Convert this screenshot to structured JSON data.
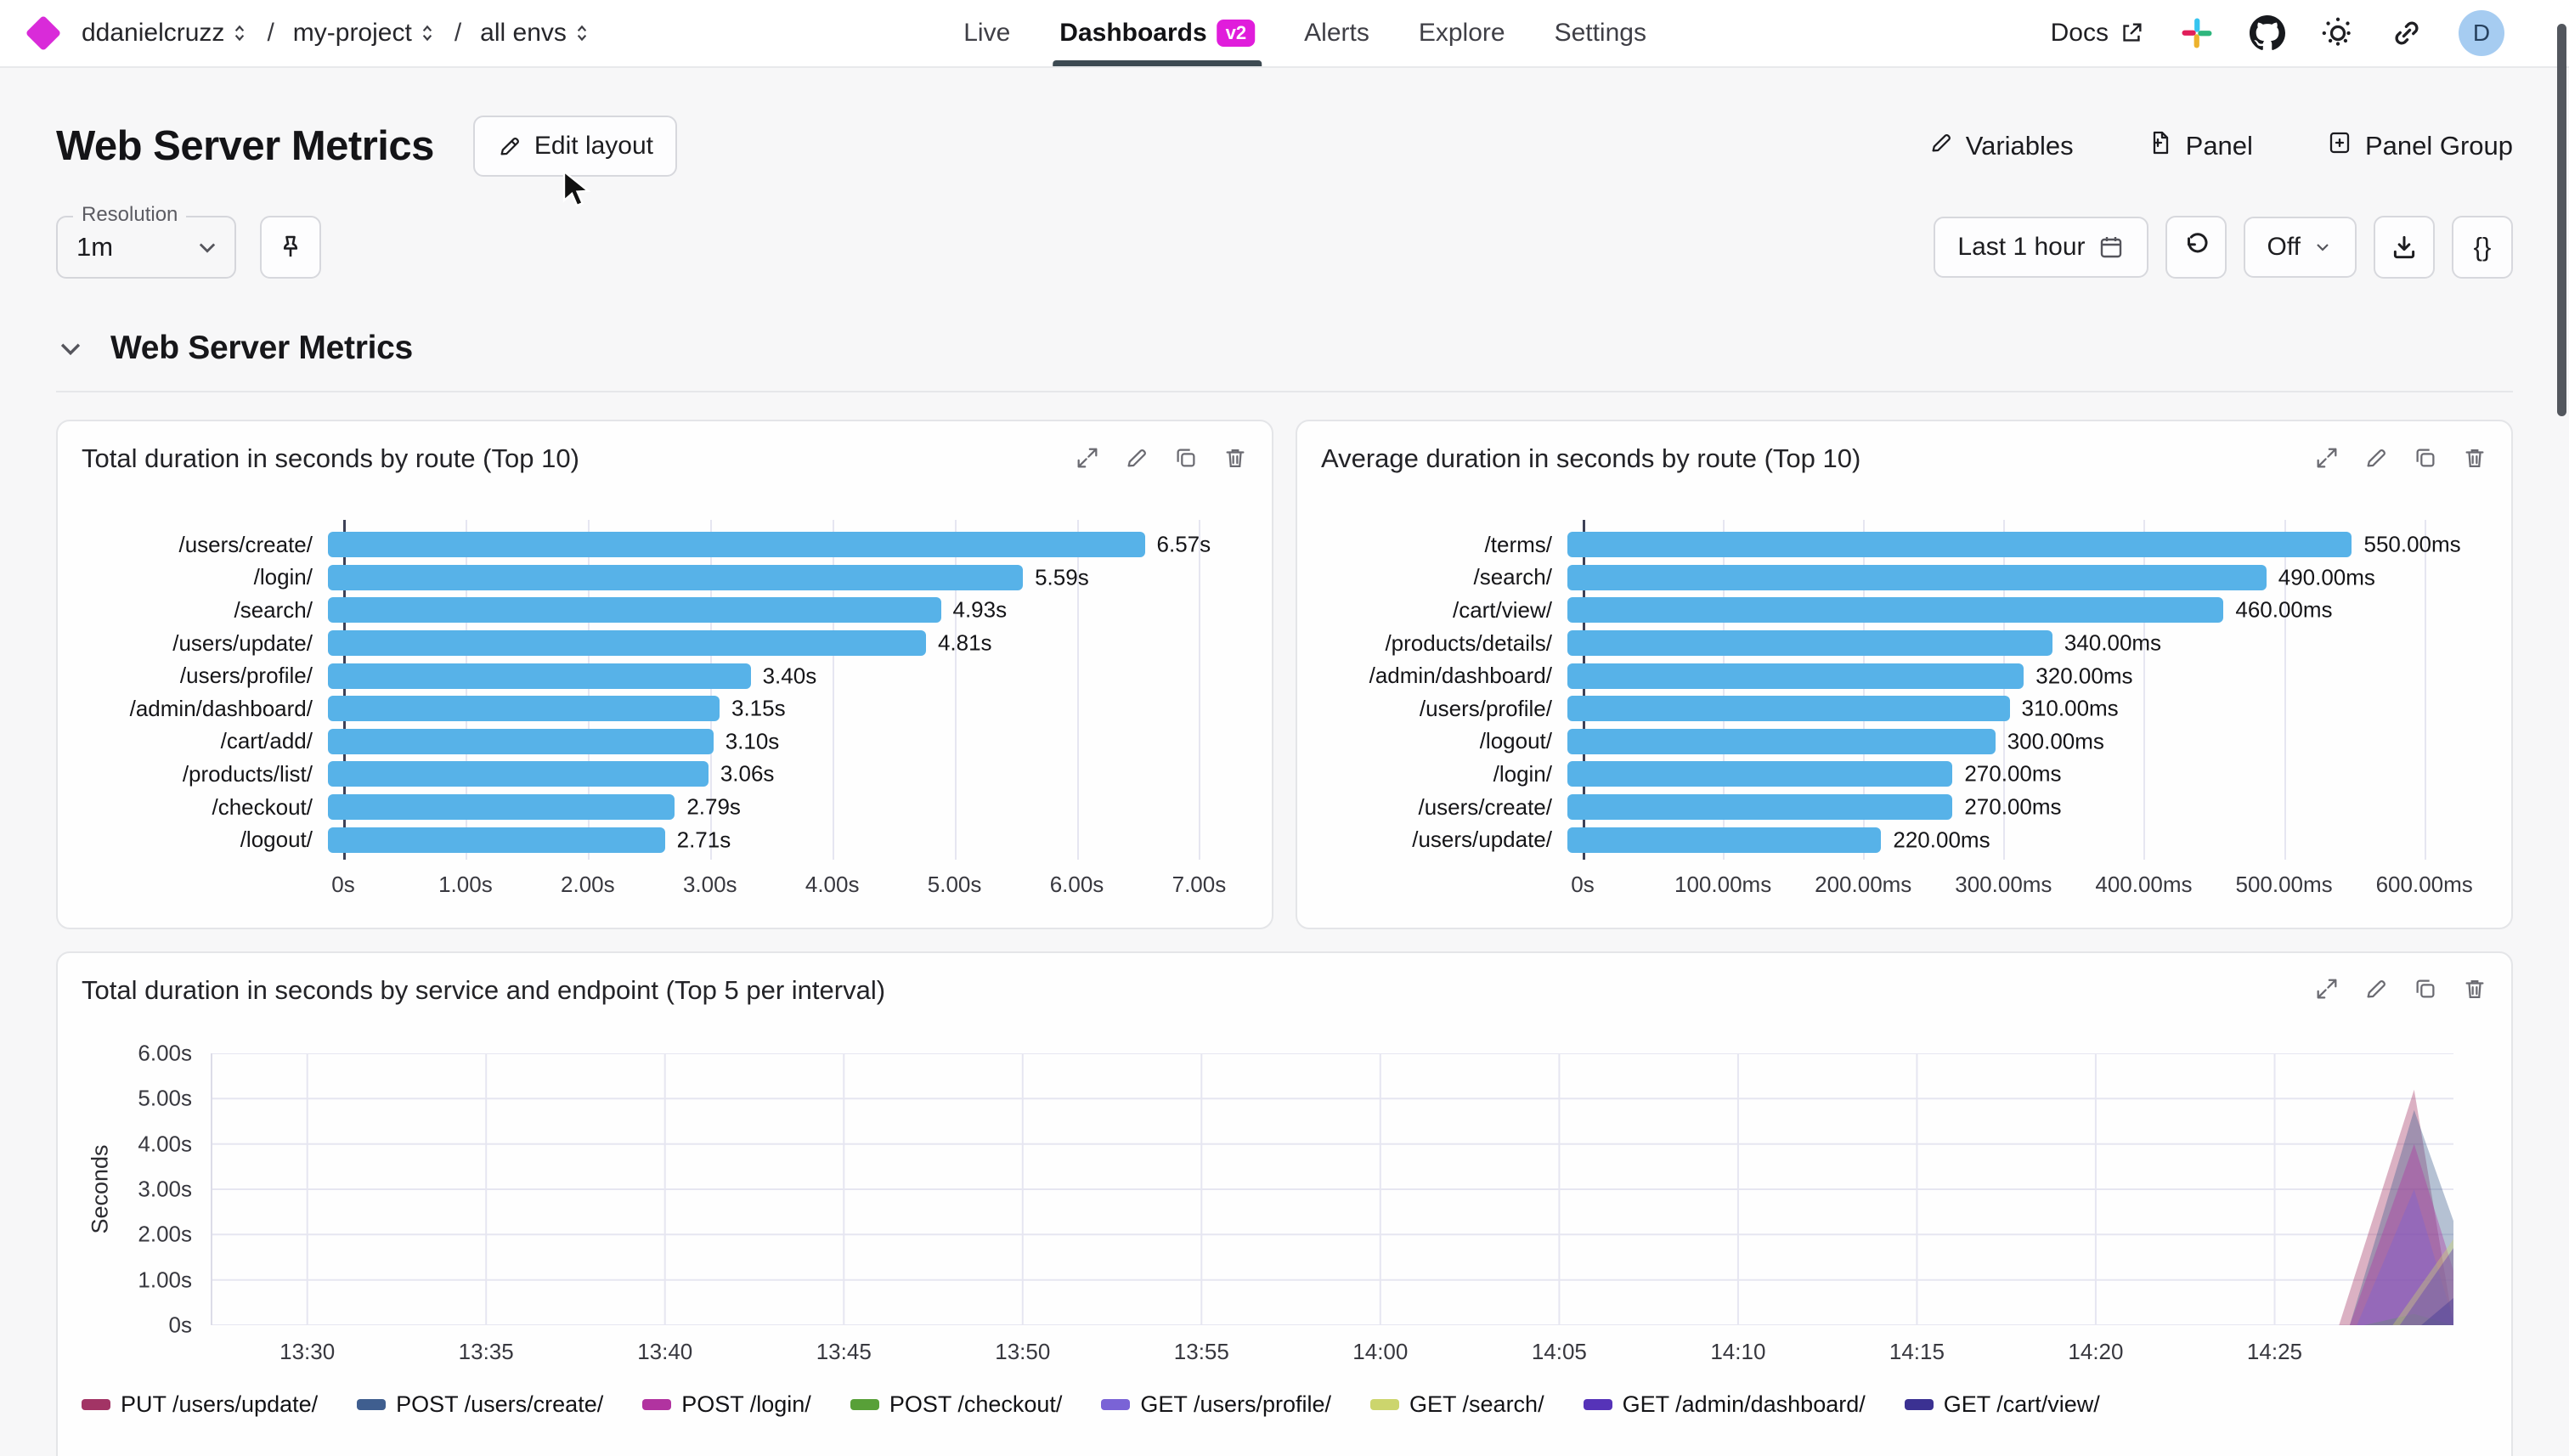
{
  "topbar": {
    "breadcrumb": {
      "separator": "/",
      "items": [
        "ddanielcruzz",
        "my-project",
        "all envs"
      ]
    },
    "tabs": [
      {
        "label": "Live",
        "active": false
      },
      {
        "label": "Dashboards",
        "active": true,
        "badge": "v2"
      },
      {
        "label": "Alerts",
        "active": false
      },
      {
        "label": "Explore",
        "active": false
      },
      {
        "label": "Settings",
        "active": false
      }
    ],
    "docs_label": "Docs",
    "avatar_initial": "D"
  },
  "header": {
    "title": "Web Server Metrics",
    "edit_layout_label": "Edit layout",
    "actions": [
      {
        "label": "Variables",
        "icon": "pencil-icon"
      },
      {
        "label": "Panel",
        "icon": "add-panel-icon"
      },
      {
        "label": "Panel Group",
        "icon": "add-panel-group-icon"
      }
    ]
  },
  "controls": {
    "resolution_label": "Resolution",
    "resolution_value": "1m",
    "time_range_label": "Last 1 hour",
    "refresh_value": "Off",
    "braces_label": "{}"
  },
  "section": {
    "title": "Web Server Metrics"
  },
  "panel_action_icons": [
    "expand-icon",
    "edit-icon",
    "duplicate-icon",
    "delete-icon"
  ],
  "chart_data": [
    {
      "type": "bar",
      "orientation": "horizontal",
      "title": "Total duration in seconds by route (Top 10)",
      "categories": [
        "/users/create/",
        "/login/",
        "/search/",
        "/users/update/",
        "/users/profile/",
        "/admin/dashboard/",
        "/cart/add/",
        "/products/list/",
        "/checkout/",
        "/logout/"
      ],
      "values": [
        6.57,
        5.59,
        4.93,
        4.81,
        3.4,
        3.15,
        3.1,
        3.06,
        2.79,
        2.71
      ],
      "value_labels": [
        "6.57s",
        "5.59s",
        "4.93s",
        "4.81s",
        "3.40s",
        "3.15s",
        "3.10s",
        "3.06s",
        "2.79s",
        "2.71s"
      ],
      "xticks": [
        {
          "v": 0,
          "label": "0s"
        },
        {
          "v": 1,
          "label": "1.00s"
        },
        {
          "v": 2,
          "label": "2.00s"
        },
        {
          "v": 3,
          "label": "3.00s"
        },
        {
          "v": 4,
          "label": "4.00s"
        },
        {
          "v": 5,
          "label": "5.00s"
        },
        {
          "v": 6,
          "label": "6.00s"
        },
        {
          "v": 7,
          "label": "7.00s"
        }
      ],
      "xmax": 7.4,
      "bar_color": "#57b2e8"
    },
    {
      "type": "bar",
      "orientation": "horizontal",
      "title": "Average duration in seconds by route (Top 10)",
      "categories": [
        "/terms/",
        "/search/",
        "/cart/view/",
        "/products/details/",
        "/admin/dashboard/",
        "/users/profile/",
        "/logout/",
        "/login/",
        "/users/create/",
        "/users/update/"
      ],
      "values": [
        550,
        490,
        460,
        340,
        320,
        310,
        300,
        270,
        270,
        220
      ],
      "value_labels": [
        "550.00ms",
        "490.00ms",
        "460.00ms",
        "340.00ms",
        "320.00ms",
        "310.00ms",
        "300.00ms",
        "270.00ms",
        "270.00ms",
        "220.00ms"
      ],
      "xticks": [
        {
          "v": 0,
          "label": "0s"
        },
        {
          "v": 100,
          "label": "100.00ms"
        },
        {
          "v": 200,
          "label": "200.00ms"
        },
        {
          "v": 300,
          "label": "300.00ms"
        },
        {
          "v": 400,
          "label": "400.00ms"
        },
        {
          "v": 500,
          "label": "500.00ms"
        },
        {
          "v": 600,
          "label": "600.00ms"
        }
      ],
      "xmax": 645,
      "bar_color": "#57b2e8"
    },
    {
      "type": "area",
      "title": "Total duration in seconds by service and endpoint (Top 5 per interval)",
      "ylabel": "Seconds",
      "ylim": [
        0,
        6
      ],
      "yticks": [
        {
          "v": 0,
          "label": "0s"
        },
        {
          "v": 1,
          "label": "1.00s"
        },
        {
          "v": 2,
          "label": "2.00s"
        },
        {
          "v": 3,
          "label": "3.00s"
        },
        {
          "v": 4,
          "label": "4.00s"
        },
        {
          "v": 5,
          "label": "5.00s"
        },
        {
          "v": 6,
          "label": "6.00s"
        }
      ],
      "x_span_minutes": 62.7,
      "xticks": [
        {
          "t": 2.7,
          "label": "13:30"
        },
        {
          "t": 7.7,
          "label": "13:35"
        },
        {
          "t": 12.7,
          "label": "13:40"
        },
        {
          "t": 17.7,
          "label": "13:45"
        },
        {
          "t": 22.7,
          "label": "13:50"
        },
        {
          "t": 27.7,
          "label": "13:55"
        },
        {
          "t": 32.7,
          "label": "14:00"
        },
        {
          "t": 37.7,
          "label": "14:05"
        },
        {
          "t": 42.7,
          "label": "14:10"
        },
        {
          "t": 47.7,
          "label": "14:15"
        },
        {
          "t": 52.7,
          "label": "14:20"
        },
        {
          "t": 57.7,
          "label": "14:25"
        }
      ],
      "series": [
        {
          "name": "PUT /users/update/",
          "color": "#a23465",
          "points": [
            [
              0,
              0
            ],
            [
              59.5,
              0
            ],
            [
              61.6,
              5.2
            ],
            [
              62.7,
              0
            ]
          ]
        },
        {
          "name": "POST /users/create/",
          "color": "#3f5e8f",
          "points": [
            [
              0,
              0
            ],
            [
              59.8,
              0
            ],
            [
              61.6,
              4.75
            ],
            [
              62.7,
              2.3
            ]
          ]
        },
        {
          "name": "POST /login/",
          "color": "#b133a0",
          "points": [
            [
              0,
              0
            ],
            [
              59.8,
              0
            ],
            [
              61.6,
              4.0
            ],
            [
              62.7,
              1.2
            ]
          ]
        },
        {
          "name": "POST /checkout/",
          "color": "#58a038",
          "points": [
            [
              0,
              0
            ],
            [
              60.2,
              0
            ],
            [
              61.6,
              0.25
            ],
            [
              62.7,
              0
            ]
          ]
        },
        {
          "name": "GET /users/profile/",
          "color": "#7a63d6",
          "points": [
            [
              0,
              0
            ],
            [
              60.0,
              0
            ],
            [
              61.6,
              3.0
            ],
            [
              62.7,
              0.1
            ]
          ]
        },
        {
          "name": "GET /search/",
          "color": "#ccd56d",
          "points": [
            [
              0,
              0
            ],
            [
              61.0,
              0
            ],
            [
              62.7,
              1.9
            ]
          ]
        },
        {
          "name": "GET /admin/dashboard/",
          "color": "#5633b8",
          "points": [
            [
              0,
              0
            ],
            [
              61.2,
              0
            ],
            [
              62.7,
              1.7
            ]
          ]
        },
        {
          "name": "GET /cart/view/",
          "color": "#3b3192",
          "points": [
            [
              0,
              0
            ],
            [
              61.8,
              0
            ],
            [
              62.7,
              0.6
            ]
          ]
        }
      ]
    }
  ]
}
